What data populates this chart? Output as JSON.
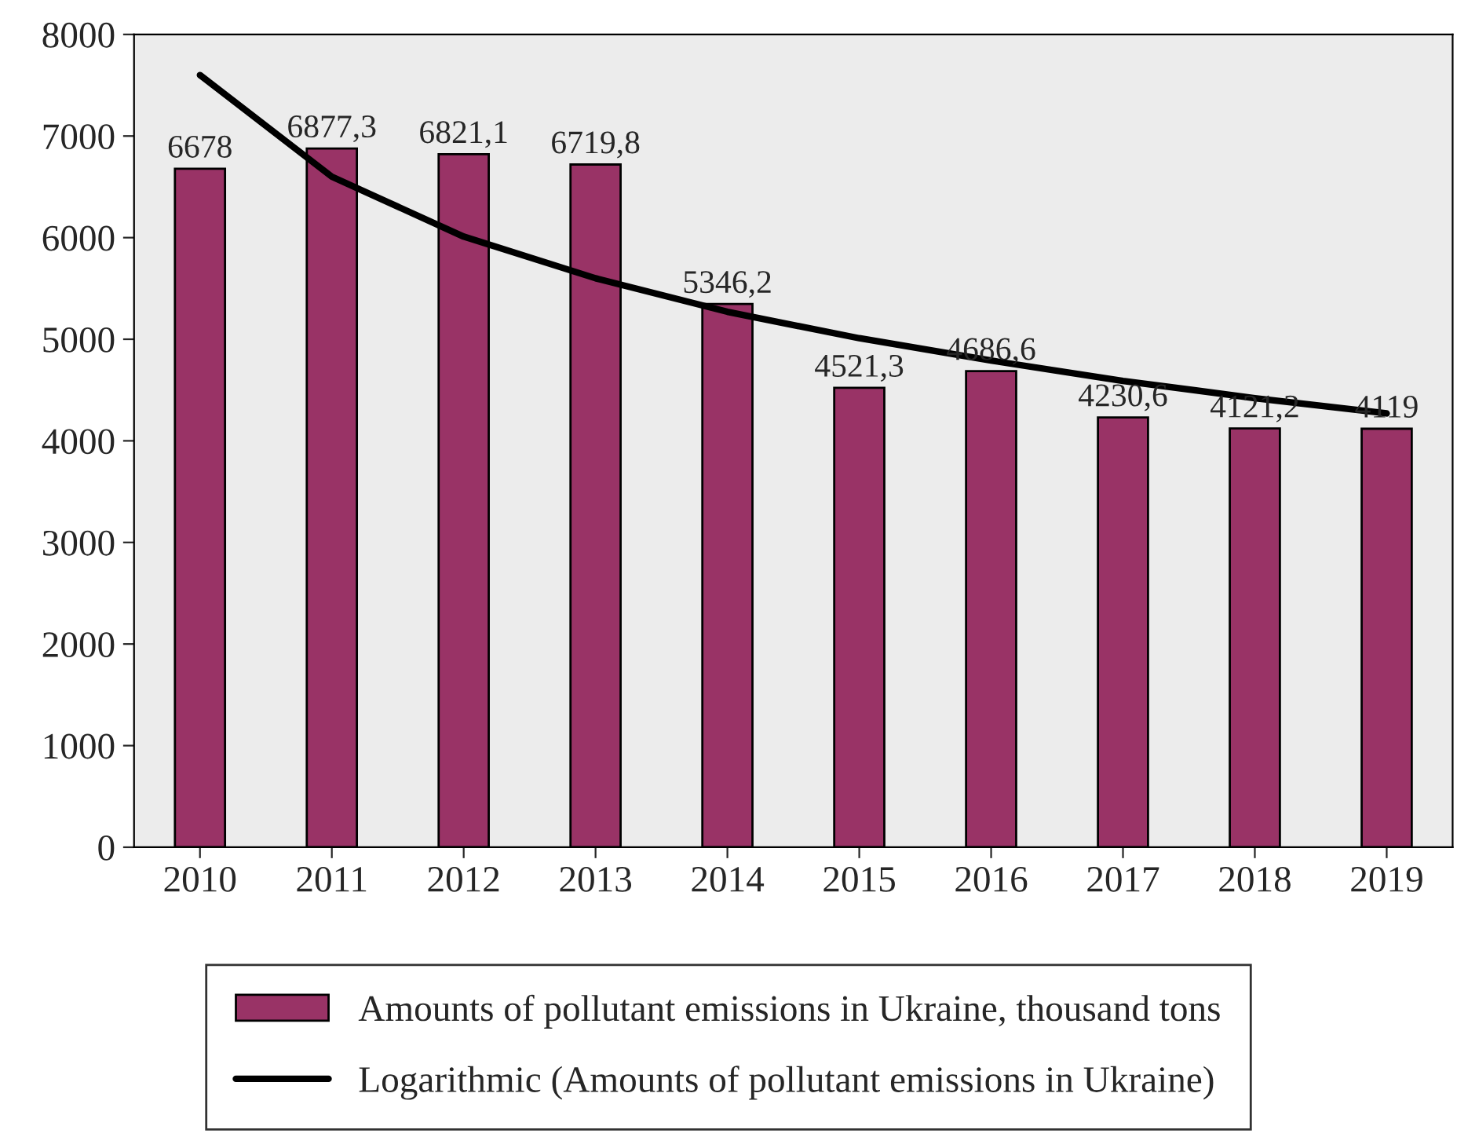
{
  "chart_data": {
    "type": "bar",
    "categories": [
      "2010",
      "2011",
      "2012",
      "2013",
      "2014",
      "2015",
      "2016",
      "2017",
      "2018",
      "2019"
    ],
    "series": [
      {
        "name": "Amounts of pollutant emissions in Ukraine, thousand tons",
        "color": "#993366",
        "values": [
          6678,
          6877.3,
          6821.1,
          6719.8,
          5346.2,
          4521.3,
          4686.6,
          4230.6,
          4121.2,
          4119
        ],
        "value_labels": [
          "6678",
          "6877,3",
          "6821,1",
          "6719,8",
          "5346,2",
          "4521,3",
          "4686,6",
          "4230,6",
          "4121,2",
          "4119"
        ]
      },
      {
        "name": "Logarithmic (Amounts of pollutant emissions in Ukraine)",
        "type": "line",
        "color": "#000000",
        "values": [
          7600,
          6600,
          6010,
          5600,
          5270,
          5010,
          4790,
          4590,
          4420,
          4270
        ]
      }
    ],
    "ylim": [
      0,
      8000
    ],
    "yticks": [
      0,
      1000,
      2000,
      3000,
      4000,
      5000,
      6000,
      7000,
      8000
    ],
    "grid": false,
    "legend": "bottom"
  }
}
